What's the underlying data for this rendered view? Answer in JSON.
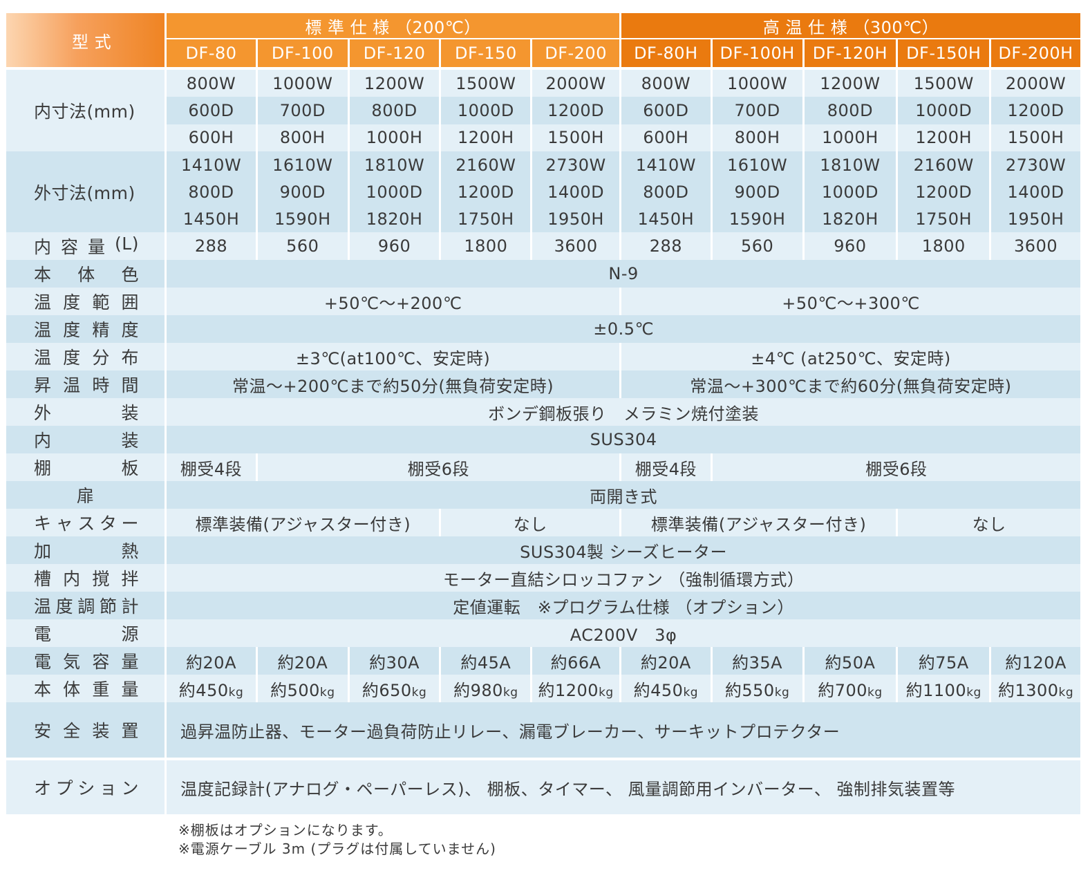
{
  "header": {
    "model_label": "型 式",
    "standard_group": "標 準 仕 様 （200℃）",
    "high_group": "高 温 仕 様 （300℃）",
    "models": [
      "DF-80",
      "DF-100",
      "DF-120",
      "DF-150",
      "DF-200",
      "DF-80H",
      "DF-100H",
      "DF-120H",
      "DF-150H",
      "DF-200H"
    ]
  },
  "inner_dims": {
    "label": "内寸法(mm)",
    "w": [
      "800W",
      "1000W",
      "1200W",
      "1500W",
      "2000W",
      "800W",
      "1000W",
      "1200W",
      "1500W",
      "2000W"
    ],
    "d": [
      "600D",
      "700D",
      "800D",
      "1000D",
      "1200D",
      "600D",
      "700D",
      "800D",
      "1000D",
      "1200D"
    ],
    "h": [
      "600H",
      "800H",
      "1000H",
      "1200H",
      "1500H",
      "600H",
      "800H",
      "1000H",
      "1200H",
      "1500H"
    ]
  },
  "outer_dims": {
    "label": "外寸法(mm)",
    "w": [
      "1410W",
      "1610W",
      "1810W",
      "2160W",
      "2730W",
      "1410W",
      "1610W",
      "1810W",
      "2160W",
      "2730W"
    ],
    "d": [
      "800D",
      "900D",
      "1000D",
      "1200D",
      "1400D",
      "800D",
      "900D",
      "1000D",
      "1200D",
      "1400D"
    ],
    "h": [
      "1450H",
      "1590H",
      "1820H",
      "1750H",
      "1950H",
      "1450H",
      "1590H",
      "1820H",
      "1750H",
      "1950H"
    ]
  },
  "capacity": {
    "label_chars": [
      "内",
      "容",
      "量",
      "(L)"
    ],
    "values": [
      "288",
      "560",
      "960",
      "1800",
      "3600",
      "288",
      "560",
      "960",
      "1800",
      "3600"
    ]
  },
  "body_color": {
    "label_chars": [
      "本",
      "体",
      "色"
    ],
    "value": "N-9"
  },
  "temp_range": {
    "label_chars": [
      "温",
      "度",
      "範",
      "囲"
    ],
    "std": "+50℃～+200℃",
    "hi": "+50℃～+300℃"
  },
  "temp_accuracy": {
    "label_chars": [
      "温",
      "度",
      "精",
      "度"
    ],
    "value": "±0.5℃"
  },
  "temp_distribution": {
    "label_chars": [
      "温",
      "度",
      "分",
      "布"
    ],
    "std": "±3℃(at100℃、安定時)",
    "hi": "±4℃ (at250℃、安定時)"
  },
  "heatup_time": {
    "label_chars": [
      "昇",
      "温",
      "時",
      "間"
    ],
    "std": "常温～+200℃まで約50分(無負荷安定時)",
    "hi": "常温～+300℃まで約60分(無負荷安定時)"
  },
  "exterior": {
    "label_chars": [
      "外",
      "装"
    ],
    "value": "ボンデ鋼板張り　メラミン焼付塗装"
  },
  "interior": {
    "label_chars": [
      "内",
      "装"
    ],
    "value": "SUS304"
  },
  "shelf": {
    "label_chars": [
      "棚",
      "板"
    ],
    "a": "棚受4段",
    "b": "棚受6段",
    "c": "棚受4段",
    "d": "棚受6段"
  },
  "door": {
    "label": "扉",
    "value": "両開き式"
  },
  "caster": {
    "label_chars": [
      "キ",
      "ャ",
      "ス",
      "タ",
      "ー"
    ],
    "std_a": "標準装備(アジャスター付き)",
    "std_b": "なし",
    "hi_a": "標準装備(アジャスター付き)",
    "hi_b": "なし"
  },
  "heating": {
    "label_chars": [
      "加",
      "熱"
    ],
    "value": "SUS304製 シーズヒーター"
  },
  "stirring": {
    "label_chars": [
      "槽",
      "内",
      "撹",
      "拌"
    ],
    "value": "モーター直結シロッコファン （強制循環方式）"
  },
  "controller": {
    "label_chars": [
      "温",
      "度",
      "調",
      "節",
      "計"
    ],
    "value": "定値運転　※プログラム仕様 （オプション）"
  },
  "power": {
    "label_chars": [
      "電",
      "源"
    ],
    "value": "AC200V　3φ"
  },
  "current": {
    "label_chars": [
      "電",
      "気",
      "容",
      "量"
    ],
    "values": [
      "約20A",
      "約20A",
      "約30A",
      "約45A",
      "約66A",
      "約20A",
      "約35A",
      "約50A",
      "約75A",
      "約120A"
    ]
  },
  "weight": {
    "label_chars": [
      "本",
      "体",
      "重",
      "量"
    ],
    "prefix": "約",
    "unit": "kg",
    "values": [
      "450",
      "500",
      "650",
      "980",
      "1200",
      "450",
      "550",
      "700",
      "1100",
      "1300"
    ]
  },
  "safety": {
    "label_chars": [
      "安",
      "全",
      "装",
      "置"
    ],
    "value": "過昇温防止器、モーター過負荷防止リレー、漏電ブレーカー、サーキットプロテクター"
  },
  "option": {
    "label_chars": [
      "オ",
      "プ",
      "シ",
      "ョ",
      "ン"
    ],
    "value": "温度記録計(アナログ・ペーパーレス)、 棚板、タイマー、 風量調節用インバーター、 強制排気装置等"
  },
  "notes": [
    "※棚板はオプションになります。",
    "※電源ケーブル 3m (プラグは付属していません)"
  ],
  "colors": {
    "standard_header": "#f4962f",
    "high_header": "#ea7a0f",
    "row_light": "#e4f0f7",
    "row_dark": "#cfe4ef"
  }
}
